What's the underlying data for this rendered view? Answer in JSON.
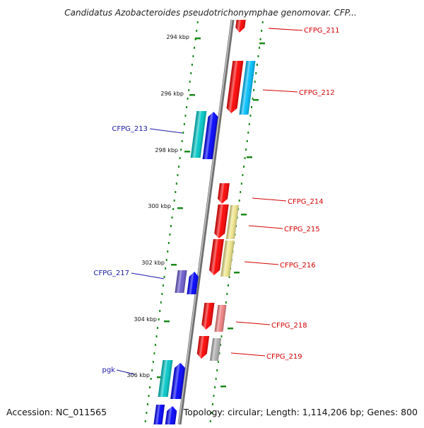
{
  "title": "Candidatus Azobacteroides pseudotrichonymphae genomovar. CFP...",
  "footer": {
    "accession": "Accession: NC_011565",
    "summary": "Topology: circular; Length: 1,114,206 bp; Genes: 800"
  },
  "scale": {
    "labels": [
      "294 kbp",
      "296 kbp",
      "298 kbp",
      "300 kbp",
      "302 kbp",
      "304 kbp",
      "306 kbp"
    ]
  },
  "genes": [
    {
      "label": "CFPG_211",
      "side": "right",
      "color": "#ff0000",
      "strand": "minus"
    },
    {
      "label": "CFPG_212",
      "side": "right",
      "color": "#ff0000",
      "strand": "minus",
      "partner_color": "#00bfff"
    },
    {
      "label": "CFPG_213",
      "side": "left",
      "color": "#0000ff",
      "strand": "plus",
      "partner_color": "#00c8c8"
    },
    {
      "label": "CFPG_214",
      "side": "right",
      "color": "#ff0000",
      "strand": "minus"
    },
    {
      "label": "CFPG_215",
      "side": "right",
      "color": "#ff0000",
      "strand": "minus",
      "partner_color": "#f0e68c"
    },
    {
      "label": "CFPG_216",
      "side": "right",
      "color": "#ff0000",
      "strand": "minus",
      "partner_color": "#f0e68c"
    },
    {
      "label": "CFPG_217",
      "side": "left",
      "color": "#0000ff",
      "strand": "plus",
      "partner_color": "#6a5acd"
    },
    {
      "label": "CFPG_218",
      "side": "right",
      "color": "#ff0000",
      "strand": "minus",
      "partner_color": "#f08080"
    },
    {
      "label": "CFPG_219",
      "side": "right",
      "color": "#ff0000",
      "strand": "minus",
      "partner_color": "#b0b0b0"
    },
    {
      "label": "pgk",
      "side": "left",
      "color": "#0000ff",
      "strand": "plus",
      "partner_color": "#00c8c8"
    }
  ],
  "colors": {
    "backbone": "#8a8a8a",
    "tick": "#1a8a1a",
    "label_right": "#d40000",
    "label_left": "#1a1aa6"
  }
}
